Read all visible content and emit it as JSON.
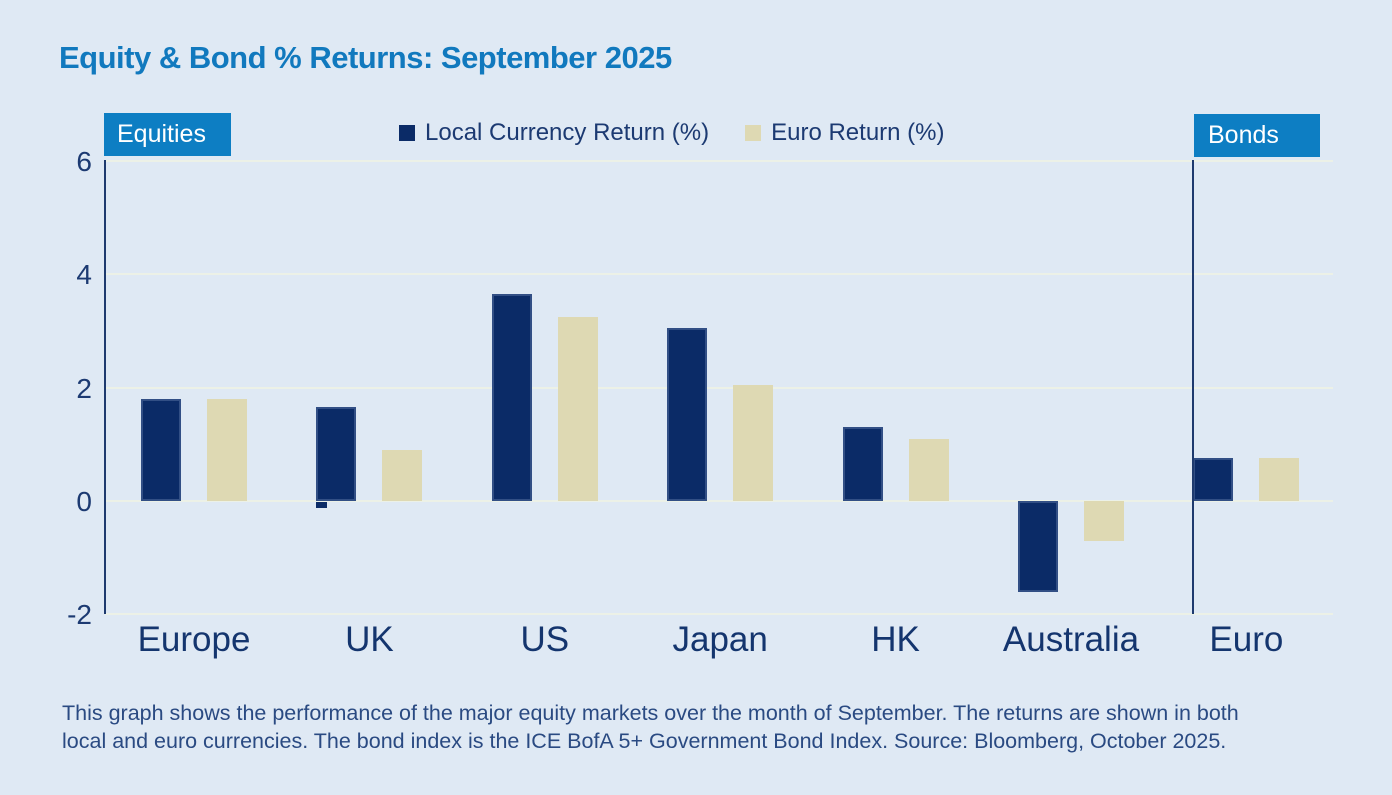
{
  "title": "Equity & Bond % Returns: September 2025",
  "badges": {
    "left": "Equities",
    "right": "Bonds"
  },
  "legend": [
    {
      "label": "Local Currency Return (%)",
      "color": "#0b2b67"
    },
    {
      "label": "Euro Return (%)",
      "color": "#ded9b3"
    }
  ],
  "chart_data": {
    "type": "bar",
    "title": "Equity & Bond % Returns: September 2025",
    "categories": [
      "Europe",
      "UK",
      "US",
      "Japan",
      "HK",
      "Australia",
      "Euro"
    ],
    "series": [
      {
        "name": "Local Currency Return (%)",
        "color": "#0b2b67",
        "values": [
          1.8,
          1.65,
          3.65,
          3.05,
          1.3,
          -1.6,
          0.75
        ]
      },
      {
        "name": "Euro Return (%)",
        "color": "#ded9b3",
        "values": [
          1.8,
          0.9,
          3.25,
          2.05,
          1.1,
          -0.7,
          0.75
        ]
      }
    ],
    "y_ticks": [
      6,
      4,
      2,
      0,
      -2
    ],
    "ylim": [
      -2,
      6
    ],
    "grid": true,
    "legend_position": "top",
    "sections": {
      "equities": [
        "Europe",
        "UK",
        "US",
        "Japan",
        "HK",
        "Australia"
      ],
      "bonds": [
        "Euro"
      ]
    },
    "annotations": [
      {
        "type": "small-notch-below-zero",
        "category": "UK",
        "series": "local",
        "value": -0.1
      }
    ]
  },
  "footnote_lines": [
    "This graph shows the performance of the major equity markets over the month of September. The returns are shown in both",
    "local and euro currencies. The bond index is the ICE BofA 5+ Government Bond Index. Source: Bloomberg, October 2025."
  ],
  "colors": {
    "background": "#dfe9f4",
    "title_blue": "#1179be",
    "badge_blue": "#0d7ec3",
    "navy_bar": "#0b2b67",
    "beige_bar": "#ded9b3",
    "gridline": "#ecf1e7",
    "axis_navy": "#1e3a6e",
    "tick_text": "#1c3a72",
    "category_text": "#14356e",
    "footnote_text": "#2a4a82"
  }
}
